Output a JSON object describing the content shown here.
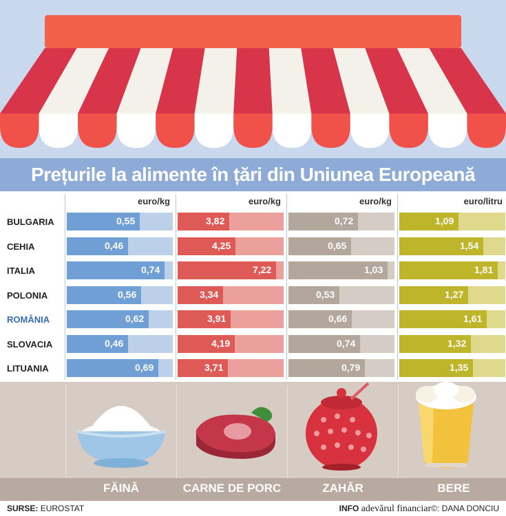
{
  "title": "Prețurile la alimente în țări din Uniunea Europeană",
  "chart_data": {
    "type": "bar",
    "title": "Prețurile la alimente în țări din Uniunea Europeană",
    "categories": [
      "BULGARIA",
      "CEHIA",
      "ITALIA",
      "POLONIA",
      "ROMÂNIA",
      "SLOVACIA",
      "LITUANIA"
    ],
    "highlight": "ROMÂNIA",
    "series": [
      {
        "name": "FĂINĂ",
        "unit": "euro/kg",
        "values": [
          0.55,
          0.46,
          0.74,
          0.56,
          0.62,
          0.46,
          0.69
        ],
        "labels": [
          "0,55",
          "0,46",
          "0,74",
          "0,56",
          "0,62",
          "0,46",
          "0,69"
        ],
        "color": "#6f9fd4",
        "track_color": "#bcd0ea",
        "max": 0.8
      },
      {
        "name": "CARNE DE PORC",
        "unit": "euro/kg",
        "values": [
          3.82,
          4.25,
          7.22,
          3.34,
          3.91,
          4.19,
          3.71
        ],
        "labels": [
          "3,82",
          "4,25",
          "7,22",
          "3,34",
          "3,91",
          "4,19",
          "3,71"
        ],
        "color": "#de5a56",
        "track_color": "#eba09c",
        "max": 7.8
      },
      {
        "name": "ZAHĂR",
        "unit": "euro/kg",
        "values": [
          0.72,
          0.65,
          1.03,
          0.53,
          0.66,
          0.74,
          0.79
        ],
        "labels": [
          "0,72",
          "0,65",
          "1,03",
          "0,53",
          "0,66",
          "0,74",
          "0,79"
        ],
        "color": "#b2a69d",
        "track_color": "#d5ccc5",
        "max": 1.1
      },
      {
        "name": "BERE",
        "unit": "euro/litru",
        "values": [
          1.09,
          1.54,
          1.81,
          1.27,
          1.61,
          1.32,
          1.35
        ],
        "labels": [
          "1,09",
          "1,54",
          "1,81",
          "1,27",
          "1,61",
          "1,32",
          "1,35"
        ],
        "color": "#bfb52a",
        "track_color": "#dfd98e",
        "max": 1.95
      }
    ]
  },
  "footer": {
    "source_label": "SURSE:",
    "source_value": "EUROSTAT",
    "credit_info": "INFO",
    "credit_brand": "adevărul financiar",
    "credit_symbol": "©:",
    "credit_author": "DANA DONCIU"
  },
  "colors": {
    "awning_red": "#d8354a",
    "awning_white": "#f4f1ea",
    "awning_top": "#f3604a",
    "sky": "#c9d8ec",
    "title_band": "#8eaad6",
    "image_band": "#d7ccc4",
    "label_band": "#b8aaa1"
  },
  "icons": [
    "flour-bowl-icon",
    "pork-meat-icon",
    "sugar-bowl-icon",
    "beer-glass-icon"
  ]
}
